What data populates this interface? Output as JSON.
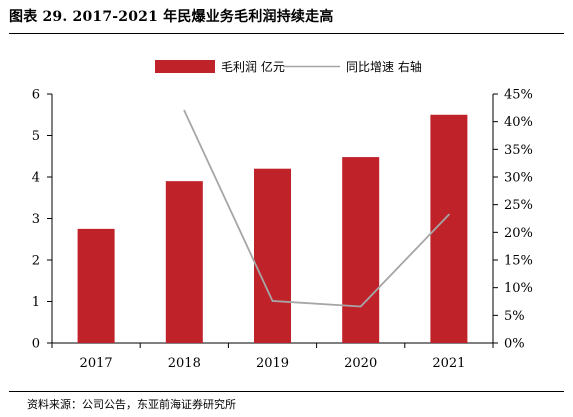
{
  "header": {
    "title": "图表 29. 2017-2021 年民爆业务毛利润持续走高"
  },
  "footer": {
    "source": "资料来源：公司公告，东亚前海证券研究所"
  },
  "colors": {
    "bar": "#c0222a",
    "line": "#a6a6a6",
    "axis": "#000000"
  },
  "chart_data": {
    "type": "bar",
    "categories": [
      "2017",
      "2018",
      "2019",
      "2020",
      "2021"
    ],
    "series": [
      {
        "name": "毛利润  亿元",
        "type": "bar",
        "axis": "left",
        "values": [
          2.75,
          3.9,
          4.2,
          4.48,
          5.5
        ]
      },
      {
        "name": "同比增速  右轴",
        "type": "line",
        "axis": "right",
        "values": [
          null,
          42.0,
          7.6,
          6.6,
          23.2
        ]
      }
    ],
    "y_left": {
      "min": 0,
      "max": 6,
      "ticks": [
        "0",
        "1",
        "2",
        "3",
        "4",
        "5",
        "6"
      ]
    },
    "y_right": {
      "min": 0,
      "max": 45,
      "ticks": [
        "0%",
        "5%",
        "10%",
        "15%",
        "20%",
        "25%",
        "30%",
        "35%",
        "40%",
        "45%"
      ]
    },
    "legend": {
      "position": "top"
    },
    "grid": false
  }
}
